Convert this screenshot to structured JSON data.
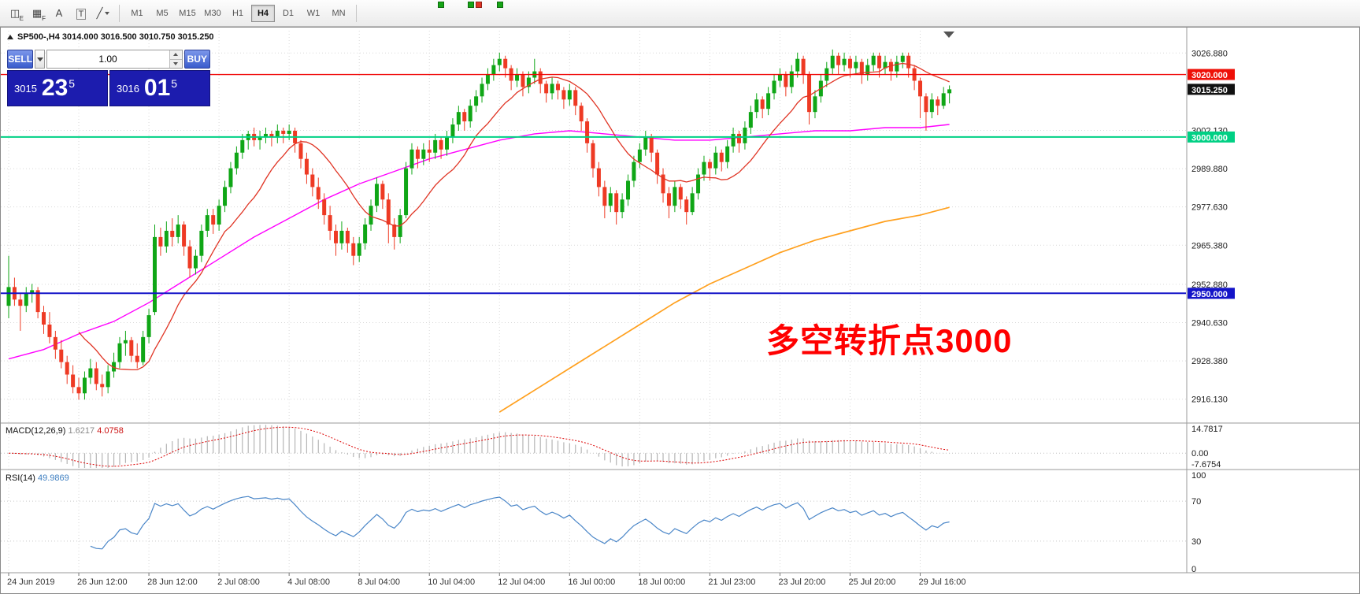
{
  "toolbar": {
    "tools": [
      {
        "name": "charts-window-icon",
        "glyph": "◫",
        "sub": "E"
      },
      {
        "name": "chart-profiles-icon",
        "glyph": "▦",
        "sub": "F"
      },
      {
        "name": "label-tool-icon",
        "glyph": "A"
      },
      {
        "name": "text-tool-icon",
        "glyph": "T",
        "boxed": true
      },
      {
        "name": "drawing-tools-icon",
        "glyph": "╱",
        "caret": true
      }
    ],
    "timeframes": [
      "M1",
      "M5",
      "M15",
      "M30",
      "H1",
      "H4",
      "D1",
      "W1",
      "MN"
    ],
    "active_timeframe": "H4",
    "mini_icons": [
      {
        "color": "#16a516"
      },
      {
        "color": "#16a516"
      },
      {
        "color": "#e03424"
      },
      {
        "color": "#16a516"
      }
    ]
  },
  "chart": {
    "header": "SP500-,H4  3014.000 3016.500 3010.750 3015.250"
  },
  "trade_panel": {
    "sell_label": "SELL",
    "buy_label": "BUY",
    "volume": "1.00",
    "bid_small": "3015",
    "bid_big": "23",
    "bid_sup": "5",
    "ask_small": "3016",
    "ask_big": "01",
    "ask_sup": "5"
  },
  "annotation": {
    "text": "多空转折点3000",
    "color": "#ff0000"
  },
  "price_scale": {
    "ticks": [
      "3026.880",
      "3002.130",
      "2989.880",
      "2977.630",
      "2965.380",
      "2952.880",
      "2940.630",
      "2928.380",
      "2916.130"
    ],
    "badges": [
      {
        "text": "3020.000",
        "price": 3020.0,
        "bg": "#ee1008",
        "fg": "#ffffff"
      },
      {
        "text": "3015.250",
        "price": 3015.25,
        "bg": "#111111",
        "fg": "#ffffff"
      },
      {
        "text": "3000.000",
        "price": 3000.0,
        "bg": "#00d084",
        "fg": "#ffffff"
      },
      {
        "text": "2950.000",
        "price": 2950.0,
        "bg": "#1414c8",
        "fg": "#ffffff"
      }
    ]
  },
  "time_axis": [
    "24 Jun 2019",
    "26 Jun 12:00",
    "28 Jun 12:00",
    "2 Jul 08:00",
    "4 Jul 08:00",
    "8 Jul 04:00",
    "10 Jul 04:00",
    "12 Jul 04:00",
    "16 Jul 00:00",
    "18 Jul 00:00",
    "21 Jul 23:00",
    "23 Jul 20:00",
    "25 Jul 20:00",
    "29 Jul 16:00"
  ],
  "macd": {
    "label": "MACD(12,26,9)",
    "value_main": "1.6217",
    "value_signal": "4.0758",
    "scale_top": "14.7817",
    "scale_zero": "0.00",
    "scale_bottom": "-7.6754",
    "fast": 12,
    "slow": 26,
    "signal": 9,
    "bar_color": "#b5b5b5",
    "signal_color": "#dd0000"
  },
  "rsi": {
    "label": "RSI(14)",
    "value": "49.9869",
    "period": 14,
    "levels": [
      70,
      30
    ],
    "scale": [
      "100",
      "70",
      "30",
      "0"
    ],
    "line_color": "#4a86c8"
  },
  "chart_data": {
    "type": "candlestick",
    "title": "SP500-,H4",
    "y_range": [
      2909,
      3034
    ],
    "x_label_every": 12,
    "colors": {
      "up": "#0fa616",
      "down": "#ee3a24"
    },
    "hlines": [
      {
        "price": 3020.0,
        "color": "#f00505",
        "width": 1.4
      },
      {
        "price": 3000.0,
        "color": "#00d084",
        "width": 2
      },
      {
        "price": 2950.0,
        "color": "#1414c8",
        "width": 2
      }
    ],
    "ma_fast": {
      "period": 13,
      "color": "#e03424"
    },
    "ma_mid": {
      "color": "#ff00ff",
      "points": [
        [
          0,
          2929
        ],
        [
          6,
          2932
        ],
        [
          12,
          2937
        ],
        [
          18,
          2941
        ],
        [
          24,
          2947
        ],
        [
          30,
          2954
        ],
        [
          36,
          2961
        ],
        [
          42,
          2968
        ],
        [
          48,
          2974
        ],
        [
          54,
          2980
        ],
        [
          60,
          2985
        ],
        [
          66,
          2989
        ],
        [
          72,
          2993
        ],
        [
          78,
          2996
        ],
        [
          84,
          2999
        ],
        [
          90,
          3001
        ],
        [
          96,
          3002
        ],
        [
          102,
          3001
        ],
        [
          108,
          3000
        ],
        [
          114,
          2999
        ],
        [
          120,
          2999
        ],
        [
          126,
          3000
        ],
        [
          132,
          3001
        ],
        [
          138,
          3002
        ],
        [
          144,
          3002
        ],
        [
          150,
          3003
        ],
        [
          156,
          3003
        ],
        [
          161,
          3004
        ]
      ]
    },
    "ma_slow": {
      "color": "#ffa01e",
      "points": [
        [
          84,
          2912
        ],
        [
          90,
          2919
        ],
        [
          96,
          2926
        ],
        [
          102,
          2933
        ],
        [
          108,
          2940
        ],
        [
          114,
          2947
        ],
        [
          120,
          2953
        ],
        [
          126,
          2958
        ],
        [
          132,
          2963
        ],
        [
          138,
          2967
        ],
        [
          144,
          2970
        ],
        [
          150,
          2973
        ],
        [
          156,
          2975
        ],
        [
          161,
          2977.5
        ]
      ]
    },
    "ohlc": [
      [
        2946,
        2962,
        2942,
        2952
      ],
      [
        2952,
        2955,
        2946,
        2948
      ],
      [
        2948,
        2950,
        2938,
        2946
      ],
      [
        2946,
        2952,
        2944,
        2950
      ],
      [
        2950,
        2953,
        2947,
        2951
      ],
      [
        2951,
        2952,
        2942,
        2944
      ],
      [
        2944,
        2946,
        2937,
        2940
      ],
      [
        2940,
        2944,
        2934,
        2936
      ],
      [
        2936,
        2938,
        2929,
        2932
      ],
      [
        2932,
        2935,
        2926,
        2928
      ],
      [
        2928,
        2930,
        2921,
        2924
      ],
      [
        2924,
        2927,
        2918,
        2920
      ],
      [
        2920,
        2923,
        2916,
        2918
      ],
      [
        2918,
        2925,
        2916,
        2923
      ],
      [
        2923,
        2929,
        2921,
        2926
      ],
      [
        2926,
        2928,
        2919,
        2921
      ],
      [
        2921,
        2924,
        2917,
        2920
      ],
      [
        2920,
        2927,
        2918,
        2925
      ],
      [
        2925,
        2931,
        2923,
        2928
      ],
      [
        2928,
        2936,
        2926,
        2934
      ],
      [
        2934,
        2938,
        2930,
        2935
      ],
      [
        2935,
        2936,
        2928,
        2930
      ],
      [
        2930,
        2934,
        2926,
        2928
      ],
      [
        2928,
        2938,
        2927,
        2936
      ],
      [
        2936,
        2945,
        2934,
        2943
      ],
      [
        2944,
        2972,
        2943,
        2968
      ],
      [
        2968,
        2971,
        2962,
        2965
      ],
      [
        2965,
        2973,
        2963,
        2970
      ],
      [
        2970,
        2974,
        2965,
        2968
      ],
      [
        2968,
        2975,
        2966,
        2972
      ],
      [
        2972,
        2973,
        2962,
        2965
      ],
      [
        2965,
        2967,
        2955,
        2958
      ],
      [
        2958,
        2964,
        2956,
        2962
      ],
      [
        2962,
        2972,
        2960,
        2970
      ],
      [
        2970,
        2977,
        2968,
        2975
      ],
      [
        2975,
        2977,
        2969,
        2972
      ],
      [
        2972,
        2980,
        2970,
        2978
      ],
      [
        2978,
        2986,
        2976,
        2984
      ],
      [
        2984,
        2992,
        2982,
        2990
      ],
      [
        2990,
        2997,
        2988,
        2995
      ],
      [
        2995,
        3001,
        2993,
        2999
      ],
      [
        2999,
        3002,
        2996,
        3001
      ],
      [
        3001,
        3003,
        2997,
        2999
      ],
      [
        2999,
        3002,
        2996,
        3000
      ],
      [
        3000,
        3003,
        2998,
        3001
      ],
      [
        3001,
        3002,
        2997,
        3000
      ],
      [
        3000,
        3004,
        2998,
        3002
      ],
      [
        3002,
        3003,
        2998,
        3001
      ],
      [
        3001,
        3004,
        2999,
        3002
      ],
      [
        3002,
        3003,
        2995,
        2998
      ],
      [
        2998,
        2999,
        2990,
        2993
      ],
      [
        2993,
        2995,
        2985,
        2988
      ],
      [
        2988,
        2990,
        2981,
        2984
      ],
      [
        2984,
        2987,
        2977,
        2980
      ],
      [
        2980,
        2982,
        2972,
        2975
      ],
      [
        2975,
        2978,
        2967,
        2970
      ],
      [
        2970,
        2972,
        2962,
        2966
      ],
      [
        2966,
        2973,
        2964,
        2970
      ],
      [
        2970,
        2971,
        2963,
        2966
      ],
      [
        2966,
        2968,
        2959,
        2962
      ],
      [
        2962,
        2968,
        2960,
        2966
      ],
      [
        2966,
        2974,
        2964,
        2972
      ],
      [
        2972,
        2980,
        2970,
        2978
      ],
      [
        2978,
        2987,
        2976,
        2985
      ],
      [
        2985,
        2986,
        2977,
        2980
      ],
      [
        2980,
        2982,
        2966,
        2972
      ],
      [
        2972,
        2974,
        2964,
        2968
      ],
      [
        2968,
        2977,
        2966,
        2975
      ],
      [
        2975,
        2992,
        2974,
        2990
      ],
      [
        2990,
        2998,
        2988,
        2996
      ],
      [
        2996,
        2997,
        2990,
        2993
      ],
      [
        2993,
        2998,
        2991,
        2996
      ],
      [
        2996,
        2999,
        2992,
        2995
      ],
      [
        2995,
        3001,
        2993,
        2999
      ],
      [
        2999,
        3000,
        2993,
        2996
      ],
      [
        2996,
        3002,
        2994,
        3000
      ],
      [
        3000,
        3006,
        2998,
        3004
      ],
      [
        3004,
        3010,
        3002,
        3008
      ],
      [
        3008,
        3009,
        3002,
        3005
      ],
      [
        3005,
        3012,
        3003,
        3010
      ],
      [
        3010,
        3015,
        3008,
        3013
      ],
      [
        3013,
        3019,
        3011,
        3017
      ],
      [
        3017,
        3022,
        3015,
        3020
      ],
      [
        3020,
        3025,
        3018,
        3023
      ],
      [
        3023,
        3027,
        3021,
        3025
      ],
      [
        3025,
        3026,
        3019,
        3022
      ],
      [
        3022,
        3023,
        3015,
        3018
      ],
      [
        3018,
        3022,
        3016,
        3020
      ],
      [
        3020,
        3021,
        3013,
        3016
      ],
      [
        3016,
        3021,
        3014,
        3019
      ],
      [
        3019,
        3025,
        3017,
        3021
      ],
      [
        3021,
        3022,
        3014,
        3017
      ],
      [
        3017,
        3018,
        3011,
        3014
      ],
      [
        3014,
        3019,
        3012,
        3017
      ],
      [
        3017,
        3018,
        3012,
        3015
      ],
      [
        3015,
        3016,
        3009,
        3012
      ],
      [
        3012,
        3017,
        3010,
        3015
      ],
      [
        3015,
        3016,
        3007,
        3010
      ],
      [
        3010,
        3011,
        3002,
        3005
      ],
      [
        3005,
        3006,
        2995,
        2998
      ],
      [
        2998,
        2999,
        2987,
        2990
      ],
      [
        2990,
        2992,
        2981,
        2984
      ],
      [
        2984,
        2986,
        2974,
        2978
      ],
      [
        2978,
        2984,
        2976,
        2982
      ],
      [
        2982,
        2983,
        2972,
        2976
      ],
      [
        2976,
        2982,
        2974,
        2980
      ],
      [
        2980,
        2988,
        2978,
        2986
      ],
      [
        2986,
        2994,
        2984,
        2992
      ],
      [
        2992,
        2998,
        2990,
        2996
      ],
      [
        2996,
        3002,
        2994,
        3000
      ],
      [
        3000,
        3001,
        2992,
        2995
      ],
      [
        2995,
        2996,
        2985,
        2988
      ],
      [
        2988,
        2990,
        2979,
        2982
      ],
      [
        2982,
        2984,
        2974,
        2978
      ],
      [
        2978,
        2986,
        2976,
        2984
      ],
      [
        2984,
        2985,
        2977,
        2980
      ],
      [
        2980,
        2981,
        2972,
        2976
      ],
      [
        2976,
        2984,
        2975,
        2982
      ],
      [
        2982,
        2990,
        2980,
        2988
      ],
      [
        2988,
        2994,
        2986,
        2992
      ],
      [
        2992,
        2993,
        2986,
        2990
      ],
      [
        2990,
        2997,
        2988,
        2995
      ],
      [
        2995,
        2996,
        2989,
        2992
      ],
      [
        2992,
        2999,
        2990,
        2997
      ],
      [
        2997,
        3003,
        2995,
        3001
      ],
      [
        3001,
        3002,
        2995,
        2998
      ],
      [
        2998,
        3005,
        2996,
        3003
      ],
      [
        3003,
        3010,
        3001,
        3008
      ],
      [
        3008,
        3014,
        3006,
        3012
      ],
      [
        3012,
        3013,
        3006,
        3009
      ],
      [
        3009,
        3016,
        3007,
        3014
      ],
      [
        3014,
        3020,
        3012,
        3018
      ],
      [
        3018,
        3022,
        3016,
        3020
      ],
      [
        3020,
        3021,
        3013,
        3016
      ],
      [
        3016,
        3023,
        3014,
        3021
      ],
      [
        3021,
        3027,
        3019,
        3025
      ],
      [
        3025,
        3026,
        3017,
        3020
      ],
      [
        3020,
        3021,
        3004,
        3008
      ],
      [
        3008,
        3015,
        3006,
        3013
      ],
      [
        3013,
        3020,
        3011,
        3018
      ],
      [
        3018,
        3024,
        3016,
        3022
      ],
      [
        3022,
        3028,
        3020,
        3026
      ],
      [
        3026,
        3027,
        3020,
        3023
      ],
      [
        3023,
        3027,
        3021,
        3025
      ],
      [
        3025,
        3026,
        3019,
        3022
      ],
      [
        3022,
        3026,
        3020,
        3024
      ],
      [
        3024,
        3025,
        3017,
        3020
      ],
      [
        3020,
        3025,
        3018,
        3023
      ],
      [
        3023,
        3027,
        3021,
        3026
      ],
      [
        3026,
        3027,
        3019,
        3022
      ],
      [
        3022,
        3026,
        3020,
        3024
      ],
      [
        3024,
        3025,
        3018,
        3021
      ],
      [
        3021,
        3026,
        3019,
        3024
      ],
      [
        3024,
        3027,
        3022,
        3026
      ],
      [
        3026,
        3027,
        3019,
        3022
      ],
      [
        3022,
        3023,
        3015,
        3018
      ],
      [
        3018,
        3019,
        3006,
        3013
      ],
      [
        3013,
        3014,
        3002,
        3008
      ],
      [
        3008,
        3014,
        3006,
        3012
      ],
      [
        3012,
        3013,
        3007,
        3010
      ],
      [
        3010,
        3016,
        3009,
        3014
      ],
      [
        3014,
        3016.5,
        3010.75,
        3015.25
      ]
    ]
  }
}
